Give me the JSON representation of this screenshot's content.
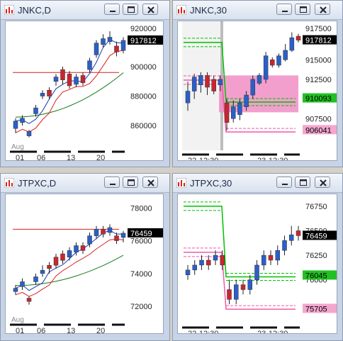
{
  "windows": [
    {
      "title": "JNKC,D",
      "chart_data": {
        "type": "candlestick",
        "yticks": [
          860000,
          880000,
          900000
        ],
        "ytick_labels": [
          "860000",
          "880000",
          "900000"
        ],
        "xticks": [
          "01",
          "06",
          "13",
          "20"
        ],
        "month_label": "Aug",
        "last_price_label": "917812",
        "top_partial_label": "920000",
        "candles": [
          {
            "o": 858000,
            "c": 863000,
            "h": 865000,
            "l": 855000,
            "up": true
          },
          {
            "o": 862000,
            "c": 865000,
            "h": 867000,
            "l": 860000,
            "up": true
          },
          {
            "o": 853000,
            "c": 856000,
            "h": 857000,
            "l": 852000,
            "up": true
          },
          {
            "o": 868000,
            "c": 872000,
            "h": 874000,
            "l": 866000,
            "up": true
          },
          {
            "o": 880000,
            "c": 882000,
            "h": 884000,
            "l": 878000,
            "up": true
          },
          {
            "o": 884000,
            "c": 880000,
            "h": 886000,
            "l": 878000,
            "up": false
          },
          {
            "o": 890000,
            "c": 893000,
            "h": 895000,
            "l": 887000,
            "up": true
          },
          {
            "o": 898000,
            "c": 891000,
            "h": 900000,
            "l": 888000,
            "up": false
          },
          {
            "o": 895000,
            "c": 887000,
            "h": 897000,
            "l": 885000,
            "up": false
          },
          {
            "o": 888000,
            "c": 893000,
            "h": 895000,
            "l": 886000,
            "up": true
          },
          {
            "o": 894000,
            "c": 889000,
            "h": 896000,
            "l": 887000,
            "up": false
          },
          {
            "o": 898000,
            "c": 904000,
            "h": 906000,
            "l": 896000,
            "up": true
          },
          {
            "o": 908000,
            "c": 916000,
            "h": 918000,
            "l": 906000,
            "up": true
          },
          {
            "o": 915000,
            "c": 919000,
            "h": 922000,
            "l": 913000,
            "up": true
          },
          {
            "o": 917000,
            "c": 920000,
            "h": 924000,
            "l": 915000,
            "up": true
          },
          {
            "o": 914000,
            "c": 910000,
            "h": 917000,
            "l": 907000,
            "up": false
          },
          {
            "o": 911000,
            "c": 917812,
            "h": 920000,
            "l": 909000,
            "up": true
          }
        ],
        "redline": 896000
      }
    },
    {
      "title": "JNKC,30",
      "chart_data": {
        "type": "candlestick",
        "yticks": [
          907500,
          912500,
          915000
        ],
        "ytick_labels": [
          "907500",
          "912500",
          "915000"
        ],
        "xticks": [
          "22-12:30",
          "23-12:30"
        ],
        "last_price_label": "917812",
        "green_tag_label": "910093",
        "pink_tag_label": "906041",
        "top_partial_label": "917500",
        "candles": [
          {
            "o": 909500,
            "c": 911000,
            "h": 912200,
            "l": 908500,
            "up": true
          },
          {
            "o": 911000,
            "c": 912800,
            "h": 913200,
            "l": 910000,
            "up": true
          },
          {
            "o": 911800,
            "c": 913000,
            "h": 913400,
            "l": 910800,
            "up": true
          },
          {
            "o": 913000,
            "c": 911500,
            "h": 913400,
            "l": 910500,
            "up": false
          },
          {
            "o": 912500,
            "c": 911000,
            "h": 913000,
            "l": 910600,
            "up": false
          },
          {
            "o": 911800,
            "c": 912500,
            "h": 913000,
            "l": 911000,
            "up": true
          },
          {
            "o": 909500,
            "c": 907000,
            "h": 910000,
            "l": 906000,
            "up": false
          },
          {
            "o": 907500,
            "c": 909000,
            "h": 909800,
            "l": 907000,
            "up": true
          },
          {
            "o": 908000,
            "c": 909500,
            "h": 910000,
            "l": 907300,
            "up": true
          },
          {
            "o": 909000,
            "c": 910500,
            "h": 911000,
            "l": 908500,
            "up": true
          },
          {
            "o": 910500,
            "c": 912500,
            "h": 913000,
            "l": 910000,
            "up": true
          },
          {
            "o": 912000,
            "c": 913000,
            "h": 913300,
            "l": 911800,
            "up": true
          },
          {
            "o": 912500,
            "c": 915500,
            "h": 916000,
            "l": 912000,
            "up": true
          },
          {
            "o": 915000,
            "c": 914300,
            "h": 915300,
            "l": 914000,
            "up": false
          },
          {
            "o": 914300,
            "c": 915500,
            "h": 915800,
            "l": 914000,
            "up": true
          },
          {
            "o": 915000,
            "c": 916200,
            "h": 917000,
            "l": 914800,
            "up": true
          },
          {
            "o": 916200,
            "c": 917812,
            "h": 918500,
            "l": 916000,
            "up": true
          },
          {
            "o": 918000,
            "c": 917500,
            "h": 918300,
            "l": 917200,
            "up": false
          }
        ]
      }
    },
    {
      "title": "JTPXC,D",
      "chart_data": {
        "type": "candlestick",
        "yticks": [
          72000,
          74000,
          76000,
          78000
        ],
        "ytick_labels": [
          "72000",
          "74000",
          "76000",
          "78000"
        ],
        "xticks": [
          "01",
          "06",
          "13",
          "20"
        ],
        "month_label": "Aug",
        "last_price_label": "76459",
        "candles": [
          {
            "o": 72900,
            "c": 73100,
            "h": 73300,
            "l": 72700,
            "up": true
          },
          {
            "o": 73200,
            "c": 73500,
            "h": 73700,
            "l": 73000,
            "up": true
          },
          {
            "o": 72500,
            "c": 72300,
            "h": 72600,
            "l": 72100,
            "up": false
          },
          {
            "o": 73500,
            "c": 73800,
            "h": 74000,
            "l": 73300,
            "up": true
          },
          {
            "o": 74000,
            "c": 74200,
            "h": 74500,
            "l": 73800,
            "up": true
          },
          {
            "o": 74500,
            "c": 74300,
            "h": 74700,
            "l": 74000,
            "up": false
          },
          {
            "o": 75000,
            "c": 74500,
            "h": 75200,
            "l": 74300,
            "up": false
          },
          {
            "o": 75200,
            "c": 74800,
            "h": 75400,
            "l": 74600,
            "up": false
          },
          {
            "o": 75000,
            "c": 75400,
            "h": 75600,
            "l": 74800,
            "up": true
          },
          {
            "o": 75300,
            "c": 75700,
            "h": 75900,
            "l": 75100,
            "up": true
          },
          {
            "o": 75700,
            "c": 75400,
            "h": 75900,
            "l": 75200,
            "up": false
          },
          {
            "o": 75800,
            "c": 76300,
            "h": 76500,
            "l": 75600,
            "up": true
          },
          {
            "o": 76300,
            "c": 76700,
            "h": 76900,
            "l": 76100,
            "up": true
          },
          {
            "o": 76700,
            "c": 76400,
            "h": 76900,
            "l": 76200,
            "up": false
          },
          {
            "o": 76500,
            "c": 76800,
            "h": 77000,
            "l": 76300,
            "up": true
          },
          {
            "o": 76300,
            "c": 76000,
            "h": 76500,
            "l": 75800,
            "up": false
          },
          {
            "o": 76200,
            "c": 76459,
            "h": 76600,
            "l": 75900,
            "up": true
          }
        ],
        "redline": 76700
      }
    },
    {
      "title": "JTPXC,30",
      "chart_data": {
        "type": "candlestick",
        "yticks": [
          76000,
          76250,
          76500,
          76750
        ],
        "ytick_labels": [
          "76000",
          "76250",
          "76500",
          "76750"
        ],
        "xticks": [
          "22-12:30",
          "23-12:30"
        ],
        "last_price_label": "76459",
        "green_tag_label": "76045",
        "pink_tag_label": "75705",
        "candles": [
          {
            "o": 76050,
            "c": 76100,
            "h": 76150,
            "l": 76000,
            "up": true
          },
          {
            "o": 76100,
            "c": 76150,
            "h": 76200,
            "l": 76050,
            "up": true
          },
          {
            "o": 76150,
            "c": 76200,
            "h": 76250,
            "l": 76100,
            "up": true
          },
          {
            "o": 76200,
            "c": 76150,
            "h": 76250,
            "l": 76100,
            "up": false
          },
          {
            "o": 76200,
            "c": 76250,
            "h": 76300,
            "l": 76150,
            "up": true
          },
          {
            "o": 76250,
            "c": 76150,
            "h": 76300,
            "l": 76100,
            "up": false
          },
          {
            "o": 75900,
            "c": 75800,
            "h": 76000,
            "l": 75750,
            "up": false
          },
          {
            "o": 75800,
            "c": 75950,
            "h": 76000,
            "l": 75750,
            "up": true
          },
          {
            "o": 75950,
            "c": 75900,
            "h": 76000,
            "l": 75850,
            "up": false
          },
          {
            "o": 75900,
            "c": 76000,
            "h": 76050,
            "l": 75850,
            "up": true
          },
          {
            "o": 76000,
            "c": 76150,
            "h": 76200,
            "l": 75950,
            "up": true
          },
          {
            "o": 76150,
            "c": 76250,
            "h": 76300,
            "l": 76100,
            "up": true
          },
          {
            "o": 76250,
            "c": 76200,
            "h": 76300,
            "l": 76150,
            "up": false
          },
          {
            "o": 76200,
            "c": 76300,
            "h": 76350,
            "l": 76150,
            "up": true
          },
          {
            "o": 76300,
            "c": 76400,
            "h": 76450,
            "l": 76250,
            "up": true
          },
          {
            "o": 76400,
            "c": 76459,
            "h": 76550,
            "l": 76350,
            "up": true
          },
          {
            "o": 76500,
            "c": 76450,
            "h": 76550,
            "l": 76400,
            "up": false
          }
        ]
      }
    }
  ],
  "colors": {
    "up": "#2b5fc9",
    "down": "#c8262f",
    "green_line": "#00c000",
    "red_line": "#d82020",
    "pink": "#ef5aa8",
    "dark_green": "#157a15"
  }
}
